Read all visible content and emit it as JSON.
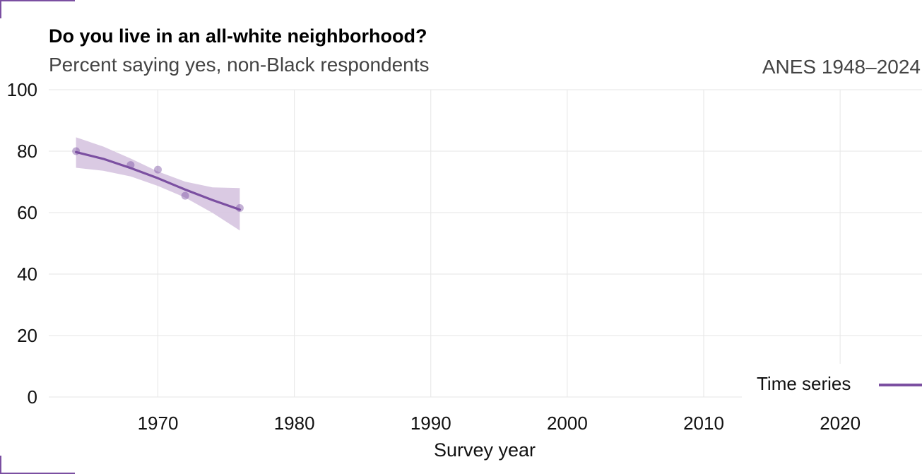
{
  "title": "Do you live in an all-white neighborhood?",
  "subtitle": "Percent saying yes, non-Black respondents",
  "source": "ANES 1948–2024",
  "colors": {
    "series": "#7b4fa1",
    "ribbon": "#d6c4e0",
    "grid": "#e6e6e6"
  },
  "chart_data": {
    "type": "line",
    "xlabel": "Survey year",
    "ylabel": "",
    "xlim": [
      1962,
      2026
    ],
    "ylim": [
      0,
      100
    ],
    "x_ticks": [
      1970,
      1980,
      1990,
      2000,
      2010,
      2020
    ],
    "y_ticks": [
      0,
      20,
      40,
      60,
      80,
      100
    ],
    "grid": true,
    "legend": {
      "position": "bottom-right",
      "entries": [
        "Time series"
      ]
    },
    "series": [
      {
        "name": "Time series",
        "points": [
          {
            "x": 1964,
            "y": 80
          },
          {
            "x": 1968,
            "y": 75.5
          },
          {
            "x": 1970,
            "y": 74
          },
          {
            "x": 1972,
            "y": 65.5
          },
          {
            "x": 1976,
            "y": 61.5
          }
        ],
        "smooth": {
          "x": [
            1964,
            1966,
            1968,
            1970,
            1972,
            1974,
            1976
          ],
          "y": [
            79.7,
            77.5,
            74.5,
            71.2,
            67.5,
            64.1,
            61.0
          ],
          "lower": [
            74.6,
            73.6,
            71.8,
            68.7,
            64.9,
            59.9,
            54.2
          ],
          "upper": [
            84.5,
            81.5,
            77.6,
            73.4,
            70.1,
            68.2,
            68.0
          ]
        }
      }
    ]
  }
}
